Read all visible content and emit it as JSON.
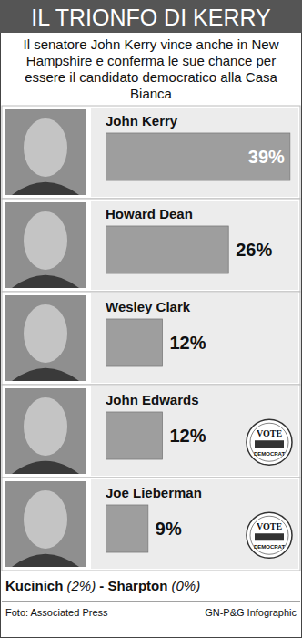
{
  "chart_data": {
    "type": "bar",
    "orientation": "horizontal",
    "title": "IL TRIONFO DI KERRY",
    "subtitle": "Il senatore John Kerry vince anche in New Hampshire e conferma le sue chance per essere il candidato democratico alla Casa Bianca",
    "categories": [
      "John Kerry",
      "Howard Dean",
      "Wesley Clark",
      "John Edwards",
      "Joe Lieberman"
    ],
    "values": [
      39,
      26,
      12,
      12,
      9
    ],
    "value_labels": [
      "39%",
      "26%",
      "12%",
      "12%",
      "9%"
    ],
    "data_labels": true,
    "color": "#9e9e9e",
    "xlim": [
      0,
      40
    ],
    "tick_labels": false,
    "grid": false,
    "annotations": [
      "VOTE",
      "DEMOCRAT"
    ],
    "footnote": {
      "items": [
        {
          "name": "Kucinich",
          "label": "(2%)"
        },
        {
          "name": "Sharpton",
          "label": "(0%)"
        }
      ],
      "separator": " - "
    },
    "source": "Foto: Associated Press",
    "credit": "GN-P&G Infographic"
  }
}
